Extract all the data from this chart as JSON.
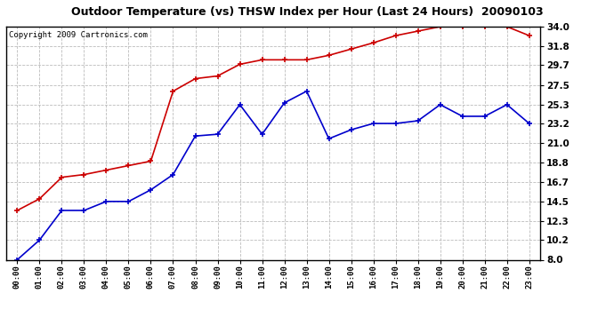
{
  "title": "Outdoor Temperature (vs) THSW Index per Hour (Last 24 Hours)  20090103",
  "copyright": "Copyright 2009 Cartronics.com",
  "hours": [
    "00:00",
    "01:00",
    "02:00",
    "03:00",
    "04:00",
    "05:00",
    "06:00",
    "07:00",
    "08:00",
    "09:00",
    "10:00",
    "11:00",
    "12:00",
    "13:00",
    "14:00",
    "15:00",
    "16:00",
    "17:00",
    "18:00",
    "19:00",
    "20:00",
    "21:00",
    "22:00",
    "23:00"
  ],
  "temp_red": [
    13.5,
    14.8,
    17.2,
    17.5,
    18.0,
    18.5,
    19.0,
    26.8,
    28.2,
    28.5,
    29.8,
    30.3,
    30.3,
    30.3,
    30.8,
    31.5,
    32.2,
    33.0,
    33.5,
    34.0,
    34.0,
    34.0,
    34.0,
    33.0
  ],
  "thsw_blue": [
    8.0,
    10.2,
    13.5,
    13.5,
    14.5,
    14.5,
    15.8,
    17.5,
    21.8,
    22.0,
    25.3,
    22.0,
    25.5,
    26.8,
    21.5,
    22.5,
    23.2,
    23.2,
    23.5,
    25.3,
    24.0,
    24.0,
    25.3,
    23.2
  ],
  "ylim_min": 8.0,
  "ylim_max": 34.0,
  "yticks": [
    8.0,
    10.2,
    12.3,
    14.5,
    16.7,
    18.8,
    21.0,
    23.2,
    25.3,
    27.5,
    29.7,
    31.8,
    34.0
  ],
  "red_color": "#cc0000",
  "blue_color": "#0000cc",
  "bg_color": "#ffffff",
  "plot_bg": "#ffffff",
  "grid_color": "#bbbbbb",
  "title_fontsize": 9,
  "copyright_fontsize": 6.5
}
